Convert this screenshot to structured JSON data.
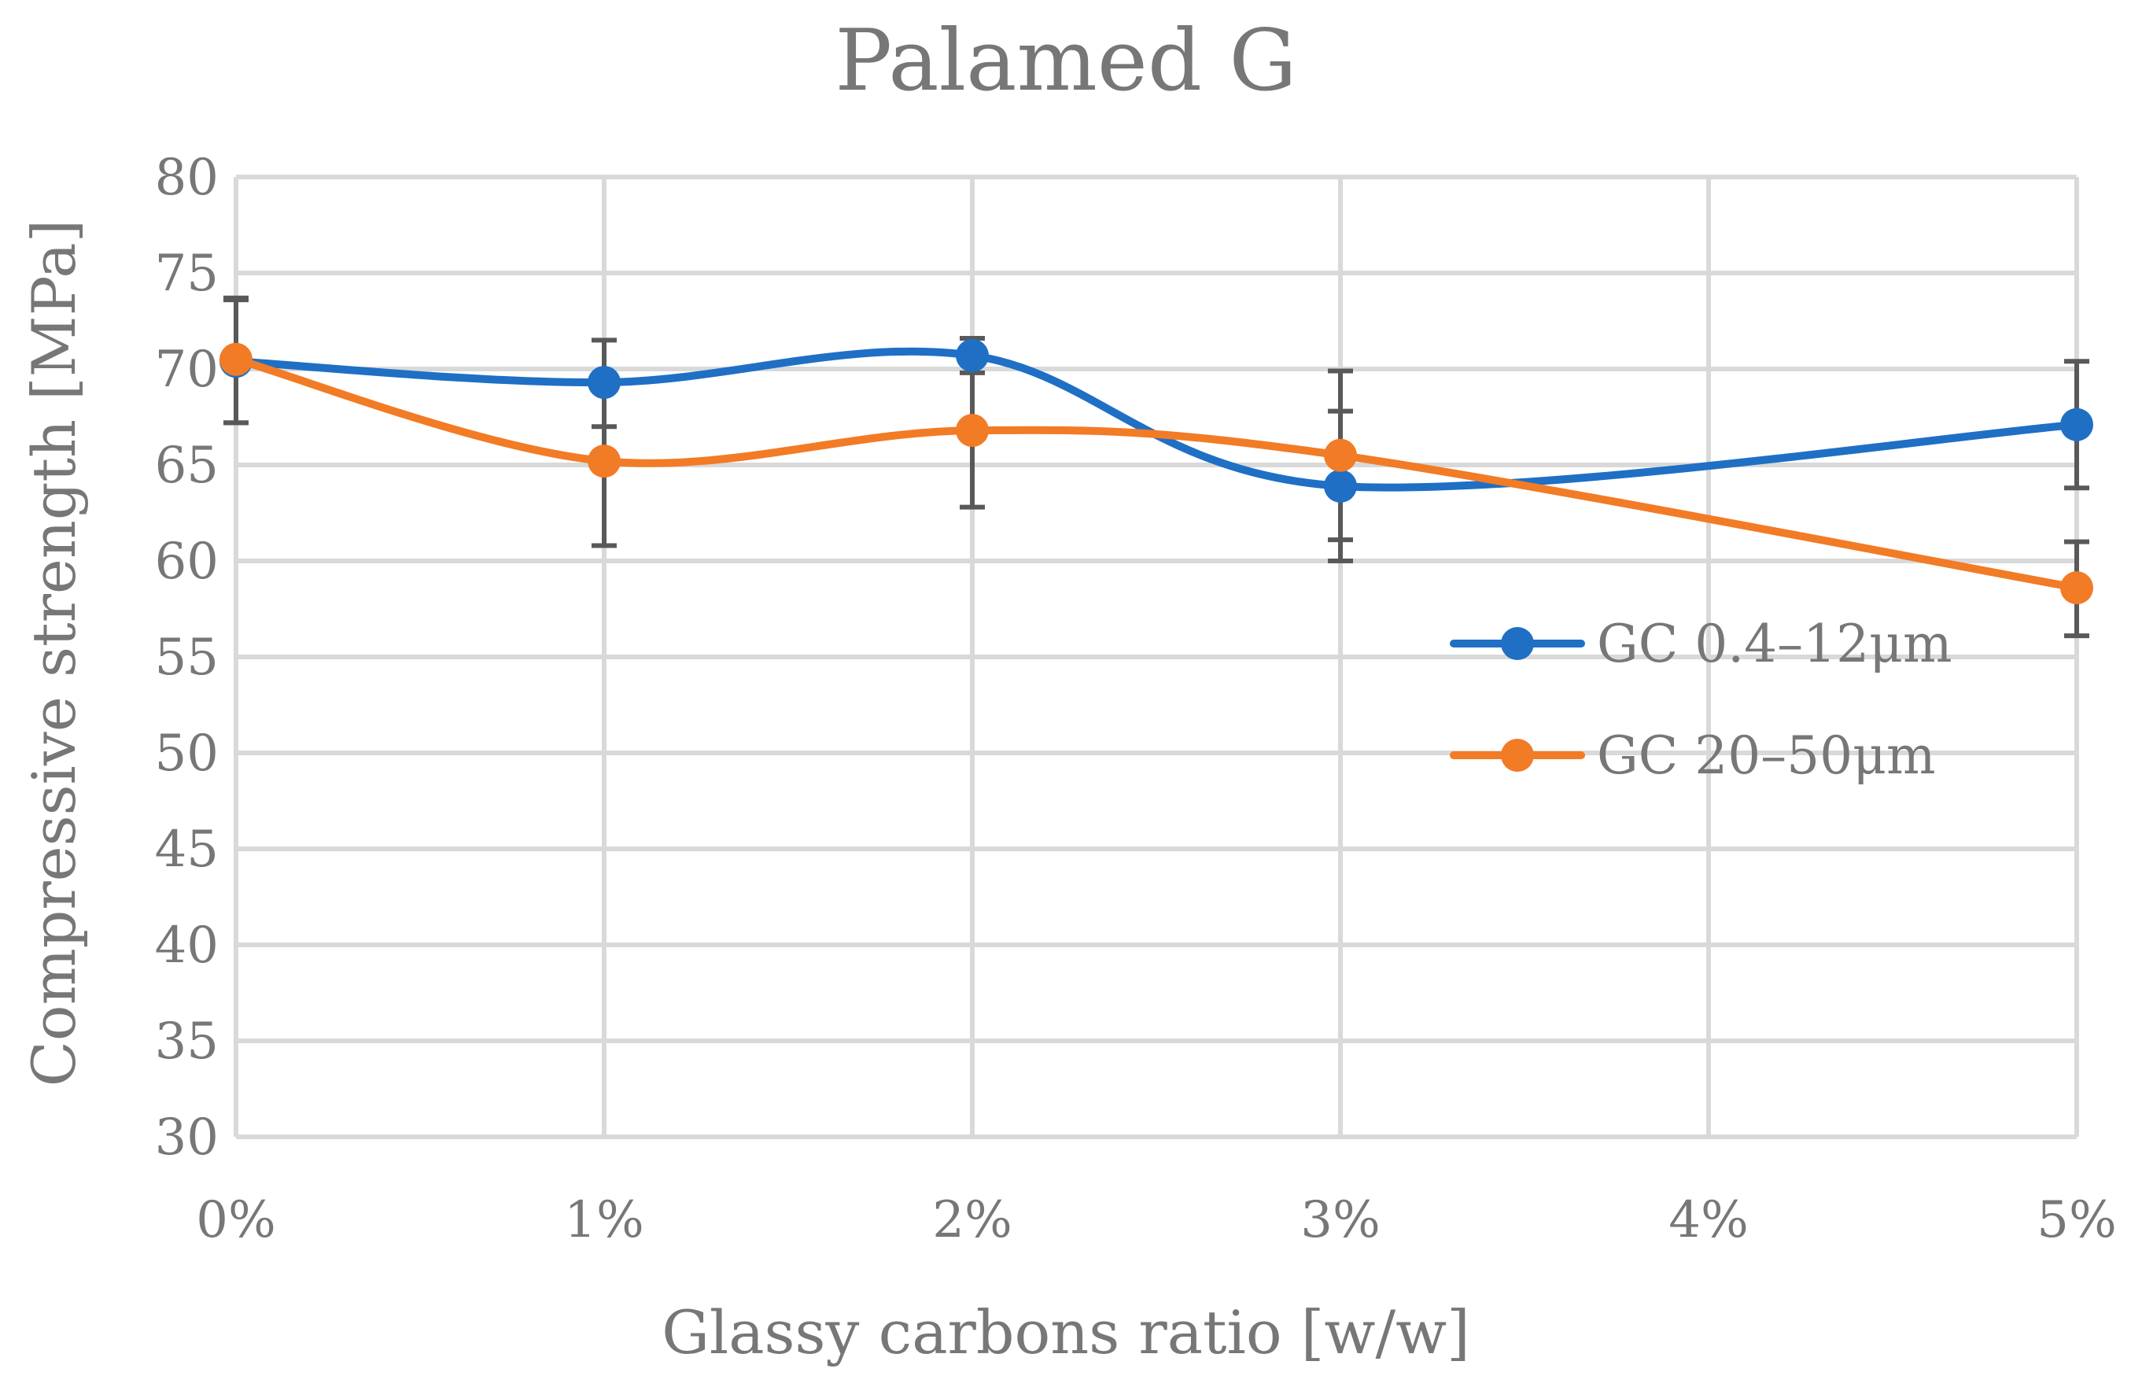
{
  "chart_data": {
    "type": "line",
    "title": "Palamed G",
    "xlabel": "Glassy carbons ratio [w/w]",
    "ylabel": "Compressive strength [MPa]",
    "categories": [
      "0%",
      "1%",
      "2%",
      "3%",
      "4%",
      "5%"
    ],
    "x": [
      0,
      1,
      2,
      3,
      4,
      5
    ],
    "ylim": [
      30,
      80
    ],
    "yticks": [
      30,
      35,
      40,
      45,
      50,
      55,
      60,
      65,
      70,
      75,
      80
    ],
    "grid": true,
    "legend_position": "right",
    "smooth": true,
    "series": [
      {
        "name": "GC 0.4–12μm",
        "color": "#1f6fc5",
        "points": [
          {
            "x": 0,
            "y": 70.4,
            "low": 67.2,
            "high": 73.6
          },
          {
            "x": 1,
            "y": 69.3,
            "low": 67.0,
            "high": 71.5
          },
          {
            "x": 2,
            "y": 70.7,
            "low": 69.8,
            "high": 71.6
          },
          {
            "x": 3,
            "y": 63.9,
            "low": 60.0,
            "high": 67.8
          },
          {
            "x": 5,
            "y": 67.1,
            "low": 63.8,
            "high": 70.4
          }
        ]
      },
      {
        "name": "GC 20–50μm",
        "color": "#f27b26",
        "points": [
          {
            "x": 0,
            "y": 70.5,
            "low": 67.2,
            "high": 73.7
          },
          {
            "x": 1,
            "y": 65.2,
            "low": 60.8,
            "high": 69.6
          },
          {
            "x": 2,
            "y": 66.8,
            "low": 62.8,
            "high": 70.8
          },
          {
            "x": 3,
            "y": 65.5,
            "low": 61.1,
            "high": 69.9
          },
          {
            "x": 5,
            "y": 58.6,
            "low": 56.1,
            "high": 61.0
          }
        ]
      }
    ]
  }
}
